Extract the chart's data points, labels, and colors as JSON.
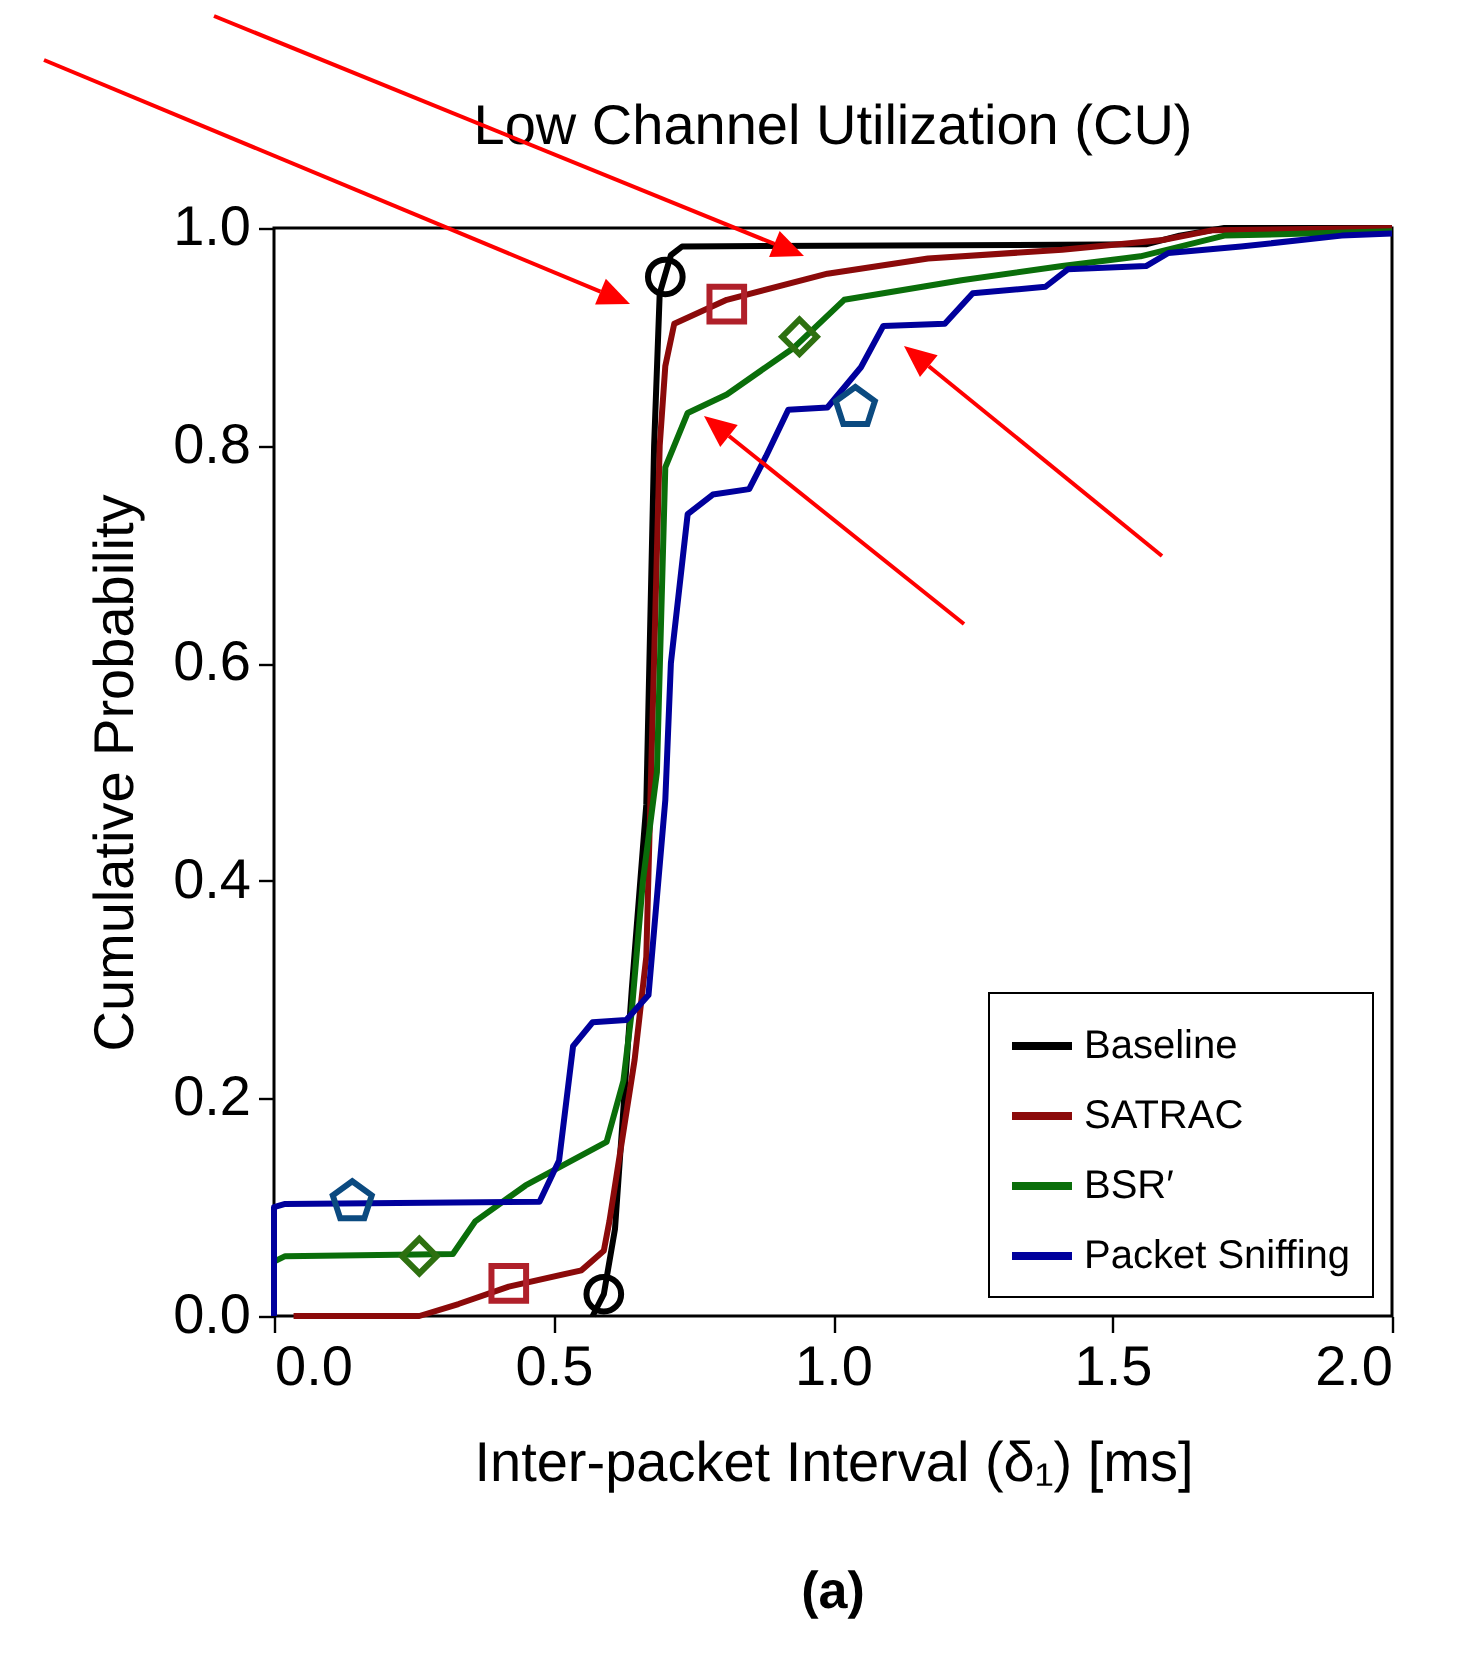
{
  "chart_data": {
    "type": "line",
    "title": "Low Channel Utilization (CU)",
    "xlabel": "Inter-packet Interval (δ₁) [ms]",
    "ylabel": "Cumulative Probability",
    "annotations": [
      "(a)"
    ],
    "xlim": [
      0,
      2
    ],
    "ylim": [
      0,
      1
    ],
    "xticks": [
      {
        "value": 0,
        "label": "0.0"
      },
      {
        "value": 0.5,
        "label": "0.5"
      },
      {
        "value": 1,
        "label": "1.0"
      },
      {
        "value": 1.5,
        "label": "1.5"
      },
      {
        "value": 2,
        "label": "2.0"
      }
    ],
    "yticks": [
      {
        "value": 0,
        "label": "0.0"
      },
      {
        "value": 0.2,
        "label": "0.2"
      },
      {
        "value": 0.4,
        "label": "0.4"
      },
      {
        "value": 0.6,
        "label": "0.6"
      },
      {
        "value": 0.8,
        "label": "0.8"
      },
      {
        "value": 1,
        "label": "1.0"
      }
    ],
    "grid": false,
    "legend": "bottom right",
    "line_style": "solid",
    "series": [
      {
        "name": "Baseline",
        "color": "#000000",
        "x": [
          0.57,
          0.59,
          0.61,
          0.64,
          0.666,
          0.68,
          0.69,
          0.71,
          0.73,
          1.56,
          1.62,
          1.7,
          2.0
        ],
        "values": [
          0,
          0.02,
          0.08,
          0.3,
          0.47,
          0.8,
          0.94,
          0.975,
          0.983,
          0.985,
          0.993,
          1.0,
          1.0
        ]
      },
      {
        "name": "SATRAC",
        "color": "#8b0a0a",
        "x": [
          0.035,
          0.26,
          0.33,
          0.42,
          0.55,
          0.59,
          0.6,
          0.645,
          0.666,
          0.69,
          0.7,
          0.716,
          0.81,
          0.99,
          1.17,
          1.41,
          1.59,
          1.68,
          2.0
        ],
        "values": [
          0,
          0,
          0.011,
          0.027,
          0.042,
          0.06,
          0.087,
          0.235,
          0.33,
          0.8,
          0.873,
          0.912,
          0.934,
          0.958,
          0.972,
          0.98,
          0.989,
          0.998,
          1.0
        ]
      },
      {
        "name": "BSR′",
        "color": "#0a6e0a",
        "x": [
          0,
          0,
          0.02,
          0.32,
          0.36,
          0.45,
          0.595,
          0.625,
          0.64,
          0.66,
          0.685,
          0.7,
          0.74,
          0.81,
          0.93,
          1.02,
          1.23,
          1.41,
          1.55,
          1.7,
          2.0
        ],
        "values": [
          0,
          0.05,
          0.055,
          0.057,
          0.087,
          0.12,
          0.16,
          0.216,
          0.28,
          0.4,
          0.5,
          0.78,
          0.83,
          0.847,
          0.89,
          0.934,
          0.952,
          0.965,
          0.974,
          0.993,
          0.997
        ]
      },
      {
        "name": "Packet Sniffing",
        "color": "#00009c",
        "x": [
          0,
          0,
          0.02,
          0.475,
          0.51,
          0.535,
          0.57,
          0.63,
          0.67,
          0.7,
          0.71,
          0.74,
          0.785,
          0.85,
          0.88,
          0.92,
          0.99,
          1.05,
          1.09,
          1.2,
          1.25,
          1.38,
          1.42,
          1.56,
          1.6,
          1.73,
          1.91,
          2.0
        ],
        "values": [
          0,
          0.1,
          0.103,
          0.105,
          0.143,
          0.248,
          0.27,
          0.272,
          0.295,
          0.474,
          0.6,
          0.737,
          0.755,
          0.76,
          0.79,
          0.833,
          0.835,
          0.872,
          0.91,
          0.912,
          0.94,
          0.946,
          0.962,
          0.965,
          0.977,
          0.983,
          0.993,
          0.995
        ]
      },
      {
        "type": "scatter",
        "marker": "circle",
        "color": "#000000",
        "x": [
          0.59,
          0.7
        ],
        "values": [
          0.02,
          0.955
        ]
      },
      {
        "type": "scatter",
        "marker": "square",
        "color": "#b0202a",
        "x": [
          0.42,
          0.81
        ],
        "values": [
          0.03,
          0.93
        ]
      },
      {
        "type": "scatter",
        "marker": "diamond",
        "color": "#2e7010",
        "x": [
          0.26,
          0.94
        ],
        "values": [
          0.055,
          0.9
        ]
      },
      {
        "type": "scatter",
        "color": "#0b4a80",
        "x": [
          0.14,
          1.04
        ],
        "values": [
          0.105,
          0.835
        ]
      }
    ]
  }
}
